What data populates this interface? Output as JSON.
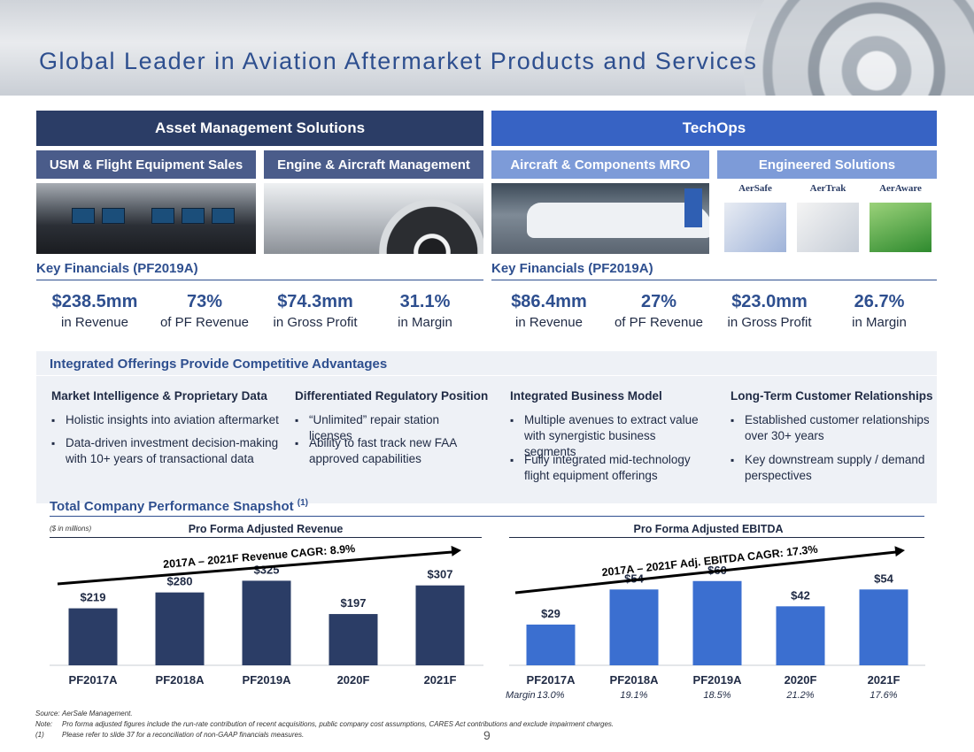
{
  "title": "Global Leader in Aviation Aftermarket Products and Services",
  "segments": {
    "left": {
      "name": "Asset Management Solutions",
      "subs": [
        "USM & Flight Equipment Sales",
        "Engine & Aircraft Management"
      ],
      "kf_label": "Key Financials (PF2019A)",
      "metrics": [
        {
          "value": "$238.5mm",
          "caption": "in Revenue"
        },
        {
          "value": "73%",
          "caption": "of PF Revenue"
        },
        {
          "value": "$74.3mm",
          "caption": "in Gross Profit"
        },
        {
          "value": "31.1%",
          "caption": "in Margin"
        }
      ]
    },
    "right": {
      "name": "TechOps",
      "subs": [
        "Aircraft & Components MRO",
        "Engineered Solutions"
      ],
      "kf_label": "Key Financials (PF2019A)",
      "metrics": [
        {
          "value": "$86.4mm",
          "caption": "in Revenue"
        },
        {
          "value": "27%",
          "caption": "of PF Revenue"
        },
        {
          "value": "$23.0mm",
          "caption": "in Gross Profit"
        },
        {
          "value": "26.7%",
          "caption": "in Margin"
        }
      ],
      "products": [
        "AerSafe",
        "AerTrak",
        "AerAware"
      ]
    }
  },
  "integrated": {
    "title": "Integrated Offerings Provide Competitive Advantages",
    "columns": [
      {
        "heading": "Market Intelligence & Proprietary Data",
        "bullets": [
          "Holistic insights into aviation aftermarket",
          "Data-driven investment decision-making with 10+ years of transactional data"
        ]
      },
      {
        "heading": "Differentiated Regulatory Position",
        "bullets": [
          "“Unlimited” repair station licenses",
          "Ability to fast track new FAA approved capabilities"
        ]
      },
      {
        "heading": "Integrated Business Model",
        "bullets": [
          "Multiple avenues to extract value with synergistic business segments",
          "Fully integrated mid-technology flight equipment offerings"
        ]
      },
      {
        "heading": "Long-Term Customer Relationships",
        "bullets": [
          "Established customer relationships over 30+ years",
          "Key downstream supply / demand perspectives"
        ]
      }
    ]
  },
  "performance": {
    "title": "Total Company Performance Snapshot",
    "title_sup": "(1)",
    "units": "($ in millions)",
    "margin_label": "Margin"
  },
  "chart_data": [
    {
      "type": "bar",
      "title": "Pro Forma Adjusted Revenue",
      "categories": [
        "PF2017A",
        "PF2018A",
        "PF2019A",
        "2020F",
        "2021F"
      ],
      "values": [
        219,
        280,
        325,
        197,
        307
      ],
      "labels": [
        "$219",
        "$280",
        "$325",
        "$197",
        "$307"
      ],
      "annotation": "2017A – 2021F Revenue CAGR: 8.9%",
      "ylim": [
        0,
        340
      ],
      "color": "#2b3d66"
    },
    {
      "type": "bar",
      "title": "Pro Forma Adjusted EBITDA",
      "categories": [
        "PF2017A",
        "PF2018A",
        "PF2019A",
        "2020F",
        "2021F"
      ],
      "values": [
        29,
        54,
        60,
        42,
        54
      ],
      "labels": [
        "$29",
        "$54",
        "$60",
        "$42",
        "$54"
      ],
      "margins": [
        "13.0%",
        "19.1%",
        "18.5%",
        "21.2%",
        "17.6%"
      ],
      "annotation": "2017A – 2021F Adj. EBITDA CAGR: 17.3%",
      "ylim": [
        0,
        63
      ],
      "color": "#3b6fd0"
    }
  ],
  "footnotes": [
    {
      "key": "Source:",
      "text": "AerSale Management."
    },
    {
      "key": "Note:",
      "text": "Pro forma adjusted figures include the run-rate contribution of recent acquisitions, public company cost assumptions, CARES Act contributions and exclude impairment charges."
    },
    {
      "key": "(1)",
      "text": "Please refer to slide 37 for a reconciliation of non-GAAP financials measures."
    }
  ],
  "page_number": "9"
}
